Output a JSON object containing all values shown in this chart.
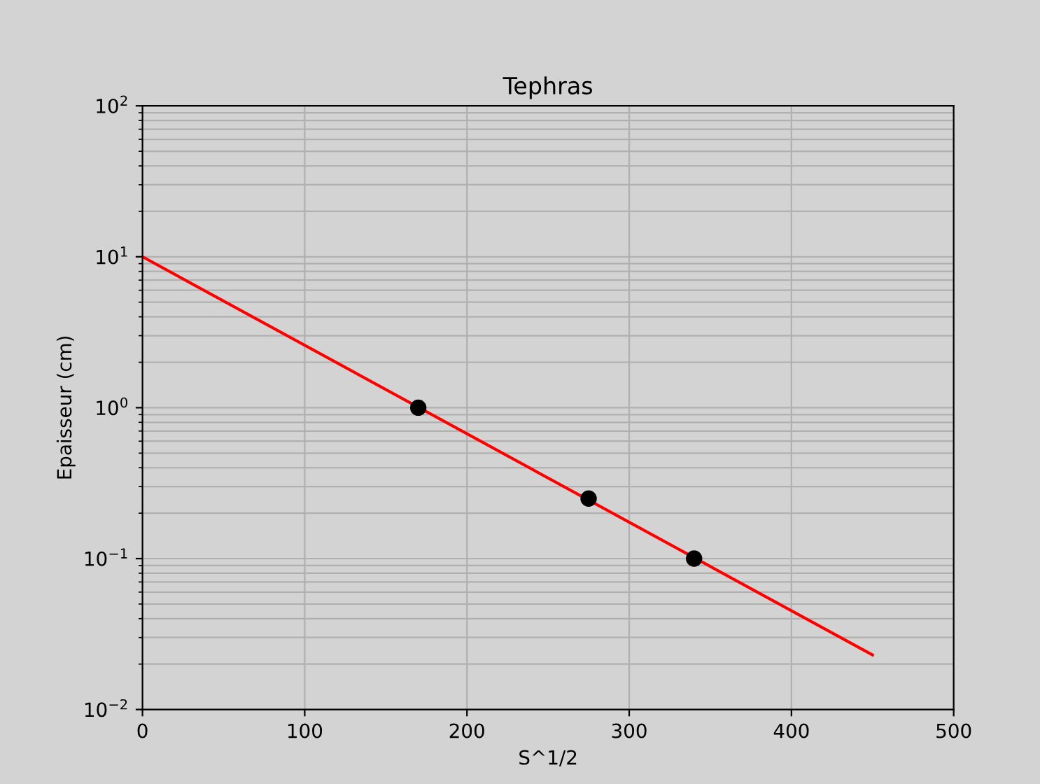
{
  "chart_data": {
    "type": "scatter",
    "title": "Tephras",
    "xlabel": "S^1/2",
    "ylabel": "Epaisseur (cm)",
    "log": "y",
    "grid": true,
    "marker": "circle",
    "xlim": [
      0,
      500
    ],
    "xticks": [
      0,
      100,
      200,
      300,
      400,
      500
    ],
    "ylim": [
      0.01,
      100
    ],
    "yticks": [
      {
        "value": 0.01,
        "label": "10$^{−2}$"
      },
      {
        "value": 0.1,
        "label": "10$^{−1}$"
      },
      {
        "value": 1,
        "label": "10$^{0}$"
      },
      {
        "value": 10,
        "label": "10$^{1}$"
      },
      {
        "value": 100,
        "label": "10$^{2}$"
      }
    ],
    "series": [
      {
        "color": "#000000",
        "x": [
          170,
          275,
          340
        ],
        "values": [
          1,
          0.25,
          0.1
        ]
      },
      {
        "type": "line",
        "color": "#ff0000",
        "marker": "none",
        "x": [
          0,
          450
        ],
        "values": [
          10,
          0.023
        ]
      }
    ]
  }
}
